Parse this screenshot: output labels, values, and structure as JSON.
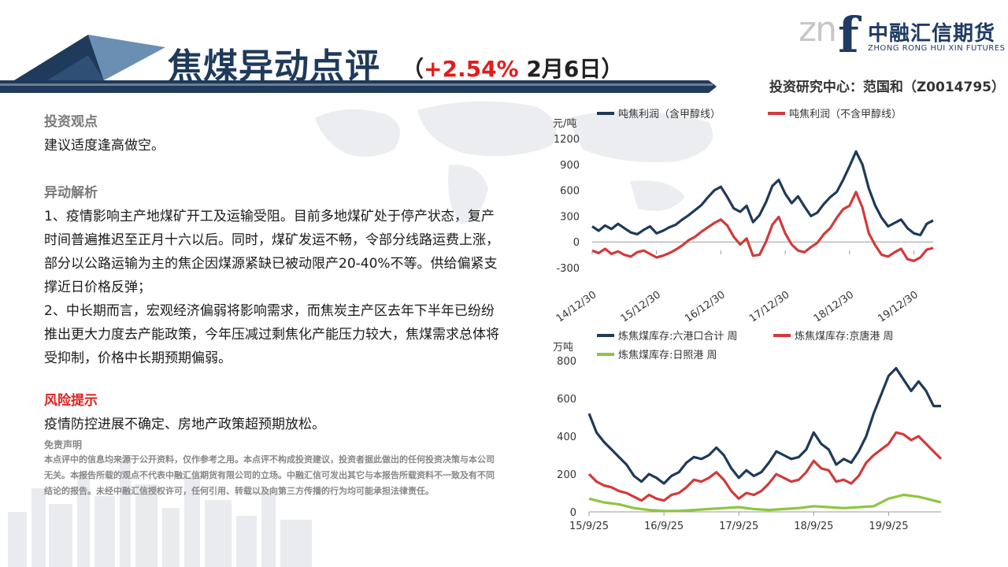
{
  "header": {
    "title": "焦煤异动点评",
    "change_open": "（",
    "change_pct": "+2.54%",
    "change_date": "  2月6日）",
    "author": "投资研究中心：范国和（Z0014795）"
  },
  "logo": {
    "mark_left": "zn",
    "mark_f": "f",
    "name_cn": "中融汇信期货",
    "name_en": "ZHONG RONG HUI XIN FUTURES"
  },
  "content": {
    "view_heading": "投资观点",
    "view_text": "建议适度逢高做空。",
    "analysis_heading": "异动解析",
    "analysis_p1": "1、疫情影响主产地煤矿开工及运输受阻。目前多地煤矿处于停产状态，复产时间普遍推迟至正月十六以后。同时，煤矿发运不畅，令部分线路运费上涨，部分以公路运输为主的焦企因煤源紧缺已被动限产20-40%不等。供给偏紧支撑近日价格反弹；",
    "analysis_p2": "2、中长期而言，宏观经济偏弱将影响需求，而焦炭主产区去年下半年已纷纷推出更大力度去产能政策，今年压减过剩焦化产能压力较大，焦煤需求总体将受抑制，价格中长期预期偏弱。",
    "risk_heading": "风险提示",
    "risk_text": "疫情防控进展不确定、房地产政策超预期放松。",
    "disclaimer_title": "免责声明",
    "disclaimer_text": "本点评中的信息均来源于公开资料，仅作参考之用。本点评不构成投资建议，投资者据此做出的任何投资决策与本公司无关。本报告所载的观点不代表中融汇信期货有限公司的立场。中融汇信可发出其它与本报告所载资料不一致及有不同结论的报告。未经中融汇信授权许可，任何引用、转载以及向第三方传播的行为均可能承担法律责任。"
  },
  "colors": {
    "navy": "#1f3a5a",
    "red": "#d23a3a",
    "green": "#8dc63f",
    "accent_red": "#e41b1b"
  },
  "chart_data": [
    {
      "type": "line",
      "title": "",
      "ylabel": "元/吨",
      "ylim": [
        -300,
        1200
      ],
      "yticks": [
        "1200",
        "900",
        "600",
        "300",
        "0",
        "-300"
      ],
      "xticks": [
        "14/12/30",
        "15/12/30",
        "16/12/30",
        "17/12/30",
        "18/12/30",
        "19/12/30"
      ],
      "legend_position": "top",
      "series": [
        {
          "name": "吨焦利润（含甲醇线）",
          "color": "#1f3a5a",
          "x": [
            0.0,
            0.1,
            0.2,
            0.3,
            0.4,
            0.5,
            0.6,
            0.7,
            0.8,
            0.9,
            1.0,
            1.1,
            1.2,
            1.3,
            1.4,
            1.5,
            1.6,
            1.7,
            1.8,
            1.9,
            2.0,
            2.1,
            2.2,
            2.3,
            2.4,
            2.5,
            2.6,
            2.7,
            2.8,
            2.9,
            3.0,
            3.1,
            3.2,
            3.3,
            3.4,
            3.5,
            3.6,
            3.7,
            3.8,
            3.9,
            4.0,
            4.1,
            4.2,
            4.3,
            4.4,
            4.5,
            4.6,
            4.7,
            4.8,
            4.9,
            5.0,
            5.1,
            5.2,
            5.3
          ],
          "values": [
            180,
            130,
            190,
            150,
            210,
            160,
            110,
            90,
            140,
            180,
            100,
            130,
            170,
            200,
            260,
            310,
            370,
            430,
            520,
            600,
            640,
            520,
            390,
            350,
            420,
            230,
            310,
            460,
            650,
            720,
            560,
            450,
            530,
            410,
            300,
            340,
            440,
            520,
            580,
            720,
            880,
            1050,
            900,
            620,
            420,
            280,
            180,
            220,
            260,
            160,
            100,
            80,
            210,
            250
          ]
        },
        {
          "name": "吨焦利润（不含甲醇线）",
          "color": "#d23a3a",
          "x": [
            0.0,
            0.1,
            0.2,
            0.3,
            0.4,
            0.5,
            0.6,
            0.7,
            0.8,
            0.9,
            1.0,
            1.1,
            1.2,
            1.3,
            1.4,
            1.5,
            1.6,
            1.7,
            1.8,
            1.9,
            2.0,
            2.1,
            2.2,
            2.3,
            2.4,
            2.5,
            2.6,
            2.7,
            2.8,
            2.9,
            3.0,
            3.1,
            3.2,
            3.3,
            3.4,
            3.5,
            3.6,
            3.7,
            3.8,
            3.9,
            4.0,
            4.1,
            4.2,
            4.3,
            4.4,
            4.5,
            4.6,
            4.7,
            4.8,
            4.9,
            5.0,
            5.1,
            5.2,
            5.3
          ],
          "values": [
            -100,
            -130,
            -80,
            -140,
            -110,
            -150,
            -170,
            -120,
            -100,
            -140,
            -180,
            -160,
            -130,
            -90,
            -40,
            20,
            60,
            120,
            170,
            220,
            260,
            190,
            60,
            -30,
            40,
            -160,
            -150,
            0,
            200,
            290,
            100,
            -30,
            -100,
            -120,
            -60,
            -10,
            90,
            160,
            280,
            380,
            420,
            580,
            400,
            100,
            -40,
            -150,
            -170,
            -120,
            -80,
            -200,
            -220,
            -180,
            -90,
            -70
          ]
        }
      ]
    },
    {
      "type": "line",
      "title": "",
      "ylabel": "万吨",
      "ylim": [
        0,
        800
      ],
      "yticks": [
        "800",
        "600",
        "400",
        "200",
        "0"
      ],
      "xticks": [
        "15/9/25",
        "16/9/25",
        "17/9/25",
        "18/9/25",
        "19/9/25"
      ],
      "legend_position": "top",
      "series": [
        {
          "name": "炼焦煤库存:六港口合计 周",
          "color": "#1f3a5a",
          "x": [
            0.0,
            0.1,
            0.2,
            0.3,
            0.4,
            0.5,
            0.6,
            0.7,
            0.8,
            0.9,
            1.0,
            1.1,
            1.2,
            1.3,
            1.4,
            1.5,
            1.6,
            1.7,
            1.8,
            1.9,
            2.0,
            2.1,
            2.2,
            2.3,
            2.4,
            2.5,
            2.6,
            2.7,
            2.8,
            2.9,
            3.0,
            3.1,
            3.2,
            3.3,
            3.4,
            3.5,
            3.6,
            3.7,
            3.8,
            3.9,
            4.0,
            4.1,
            4.2,
            4.3,
            4.4,
            4.5,
            4.6,
            4.7
          ],
          "values": [
            520,
            420,
            370,
            330,
            290,
            250,
            190,
            160,
            200,
            180,
            150,
            190,
            210,
            260,
            290,
            280,
            300,
            340,
            300,
            230,
            180,
            220,
            190,
            210,
            260,
            320,
            300,
            280,
            290,
            330,
            420,
            360,
            330,
            250,
            280,
            260,
            320,
            400,
            520,
            620,
            720,
            760,
            700,
            640,
            690,
            640,
            560,
            560
          ]
        },
        {
          "name": "炼焦煤库存:京唐港 周",
          "color": "#d23a3a",
          "x": [
            0.0,
            0.1,
            0.2,
            0.3,
            0.4,
            0.5,
            0.6,
            0.7,
            0.8,
            0.9,
            1.0,
            1.1,
            1.2,
            1.3,
            1.4,
            1.5,
            1.6,
            1.7,
            1.8,
            1.9,
            2.0,
            2.1,
            2.2,
            2.3,
            2.4,
            2.5,
            2.6,
            2.7,
            2.8,
            2.9,
            3.0,
            3.1,
            3.2,
            3.3,
            3.4,
            3.5,
            3.6,
            3.7,
            3.8,
            3.9,
            4.0,
            4.1,
            4.2,
            4.3,
            4.4,
            4.5,
            4.6,
            4.7
          ],
          "values": [
            200,
            160,
            140,
            130,
            110,
            100,
            80,
            60,
            90,
            70,
            60,
            90,
            100,
            130,
            170,
            160,
            180,
            210,
            170,
            110,
            70,
            100,
            90,
            110,
            150,
            200,
            180,
            160,
            170,
            210,
            270,
            230,
            220,
            160,
            170,
            150,
            190,
            260,
            300,
            330,
            360,
            420,
            410,
            380,
            400,
            360,
            320,
            280
          ]
        },
        {
          "name": "炼焦煤库存:日照港 周",
          "color": "#8dc63f",
          "x": [
            0.0,
            0.2,
            0.4,
            0.6,
            0.8,
            1.0,
            1.2,
            1.4,
            1.6,
            1.8,
            2.0,
            2.2,
            2.4,
            2.6,
            2.8,
            3.0,
            3.2,
            3.4,
            3.6,
            3.8,
            4.0,
            4.2,
            4.4,
            4.6,
            4.7
          ],
          "values": [
            70,
            50,
            40,
            20,
            10,
            5,
            5,
            10,
            15,
            20,
            25,
            15,
            10,
            15,
            20,
            30,
            25,
            20,
            25,
            30,
            70,
            90,
            80,
            60,
            50
          ]
        }
      ]
    }
  ]
}
